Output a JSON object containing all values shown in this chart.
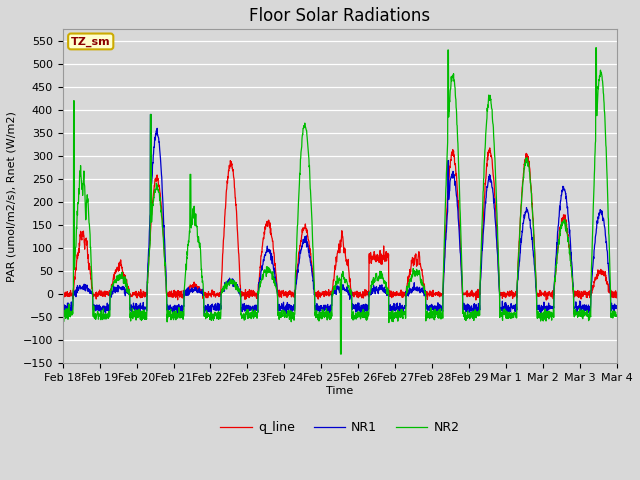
{
  "title": "Floor Solar Radiations",
  "xlabel": "Time",
  "ylabel": "PAR (umol/m2/s), Rnet (W/m2)",
  "ylim": [
    -150,
    575
  ],
  "yticks": [
    -150,
    -100,
    -50,
    0,
    50,
    100,
    150,
    200,
    250,
    300,
    350,
    400,
    450,
    500,
    550
  ],
  "xtick_labels": [
    "Feb 18",
    "Feb 19",
    "Feb 20",
    "Feb 21",
    "Feb 22",
    "Feb 23",
    "Feb 24",
    "Feb 25",
    "Feb 26",
    "Feb 27",
    "Feb 28",
    "Feb 29",
    "Mar 1",
    "Mar 2",
    "Mar 3",
    "Mar 4"
  ],
  "legend_labels": [
    "q_line",
    "NR1",
    "NR2"
  ],
  "line_colors": {
    "q_line": "#ee0000",
    "NR1": "#0000cc",
    "NR2": "#00bb00"
  },
  "annotation_text": "TZ_sm",
  "annotation_bg": "#ffffcc",
  "annotation_border": "#ccaa00",
  "plot_bg_color": "#d8d8d8",
  "fig_bg_color": "#d8d8d8",
  "title_fontsize": 12,
  "label_fontsize": 8,
  "tick_fontsize": 8
}
